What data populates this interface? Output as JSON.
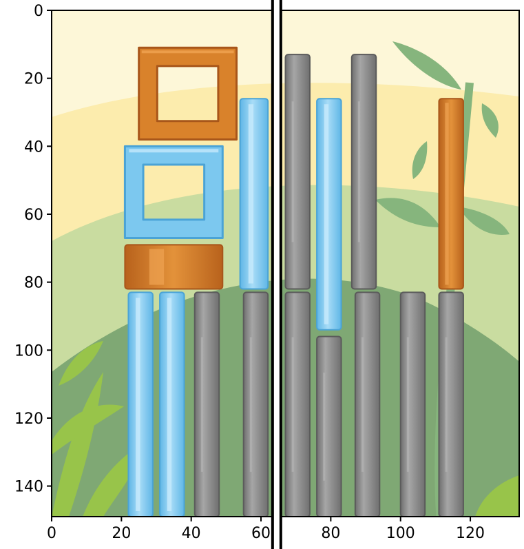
{
  "figure": {
    "x_axis": {
      "range": [
        0,
        134
      ],
      "ticks": [
        0,
        20,
        40,
        60,
        80,
        100,
        120
      ],
      "tick_labels": [
        "0",
        "20",
        "40",
        "60",
        "80",
        "100",
        "120"
      ]
    },
    "y_axis": {
      "range": [
        0,
        149
      ],
      "inverted": true,
      "ticks": [
        0,
        20,
        40,
        60,
        80,
        100,
        120,
        140
      ],
      "tick_labels": [
        "0",
        "20",
        "40",
        "60",
        "80",
        "100",
        "120",
        "140"
      ]
    },
    "split_marker": {
      "x": 64.5
    }
  },
  "colors": {
    "sky": "#fdf7d8",
    "sun_band": "#fbe9a2",
    "far_hill": "#c9dca0",
    "near_hill": "#7fa874",
    "plant": "#86b57d",
    "wood": "#d9822b",
    "wood_dark": "#a8561a",
    "ice": "#7cc8ef",
    "ice_light": "#c4e9fb",
    "stone": "#8d8d8d",
    "stone_light": "#b5b5b5",
    "leaf": "#98c44a"
  },
  "game_objects": [
    {
      "id": "wood-square-frame",
      "material": "wood",
      "shape": "frame",
      "x0": 25,
      "x1": 53,
      "y0": 11,
      "y1": 38
    },
    {
      "id": "ice-square-frame",
      "material": "ice",
      "shape": "frame",
      "x0": 21,
      "x1": 49,
      "y0": 40,
      "y1": 67
    },
    {
      "id": "wood-block",
      "material": "wood",
      "shape": "block",
      "x0": 21,
      "x1": 49,
      "y0": 69,
      "y1": 82
    },
    {
      "id": "ice-tall-bar-upper",
      "material": "ice",
      "shape": "bar",
      "x0": 54,
      "x1": 62,
      "y0": 26,
      "y1": 82
    },
    {
      "id": "ice-bar-lower-1",
      "material": "ice",
      "shape": "bar",
      "x0": 22,
      "x1": 29,
      "y0": 83,
      "y1": 149
    },
    {
      "id": "ice-bar-lower-2",
      "material": "ice",
      "shape": "bar",
      "x0": 31,
      "x1": 38,
      "y0": 83,
      "y1": 149
    },
    {
      "id": "stone-pillar-lower-1",
      "material": "stone",
      "shape": "bar",
      "x0": 41,
      "x1": 48,
      "y0": 83,
      "y1": 149
    },
    {
      "id": "stone-pillar-lower-2",
      "material": "stone",
      "shape": "bar",
      "x0": 55,
      "x1": 62,
      "y0": 83,
      "y1": 149
    },
    {
      "id": "stone-pillar-upper-1",
      "material": "stone",
      "shape": "bar",
      "x0": 67,
      "x1": 74,
      "y0": 13,
      "y1": 82
    },
    {
      "id": "ice-bar-mid",
      "material": "ice",
      "shape": "bar",
      "x0": 76,
      "x1": 83,
      "y0": 26,
      "y1": 94
    },
    {
      "id": "stone-pillar-upper-2",
      "material": "stone",
      "shape": "bar",
      "x0": 86,
      "x1": 93,
      "y0": 13,
      "y1": 82
    },
    {
      "id": "wood-bar-upper",
      "material": "wood",
      "shape": "bar",
      "x0": 111,
      "x1": 118,
      "y0": 26,
      "y1": 82
    },
    {
      "id": "stone-pillar-lower-3",
      "material": "stone",
      "shape": "bar",
      "x0": 67,
      "x1": 74,
      "y0": 83,
      "y1": 149
    },
    {
      "id": "stone-pillar-lower-4",
      "material": "stone",
      "shape": "bar",
      "x0": 76,
      "x1": 83,
      "y0": 96,
      "y1": 149
    },
    {
      "id": "stone-pillar-lower-5",
      "material": "stone",
      "shape": "bar",
      "x0": 87,
      "x1": 94,
      "y0": 83,
      "y1": 149
    },
    {
      "id": "stone-pillar-lower-6",
      "material": "stone",
      "shape": "bar",
      "x0": 100,
      "x1": 107,
      "y0": 83,
      "y1": 149
    },
    {
      "id": "stone-pillar-lower-7",
      "material": "stone",
      "shape": "bar",
      "x0": 111,
      "x1": 118,
      "y0": 83,
      "y1": 149
    }
  ]
}
